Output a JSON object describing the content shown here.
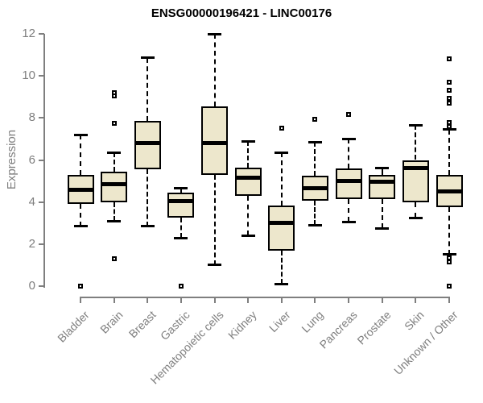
{
  "colors": {
    "box_fill": "#EDE7CC",
    "box_border": "#000000",
    "axis_gray": "#7F7F7F",
    "title_color": "#000000",
    "background": "#FFFFFF"
  },
  "chart_data": {
    "type": "boxplot",
    "title": "ENSG00000196421 - LINC00176",
    "xlabel": "",
    "ylabel": "Expression",
    "ylim": [
      0,
      12
    ],
    "yticks": [
      0,
      2,
      4,
      6,
      8,
      10,
      12
    ],
    "grid": false,
    "legend": "none",
    "categories": [
      "Bladder",
      "Brain",
      "Breast",
      "Gastric",
      "Hematopoietic cells",
      "Kidney",
      "Liver",
      "Lung",
      "Pancreas",
      "Prostate",
      "Skin",
      "Unknown / Other"
    ],
    "series": [
      {
        "name": "Bladder",
        "whisker_low": 2.85,
        "q1": 3.9,
        "median": 4.6,
        "q3": 5.3,
        "whisker_high": 7.2,
        "outliers": [
          0
        ]
      },
      {
        "name": "Brain",
        "whisker_low": 3.1,
        "q1": 4.0,
        "median": 4.85,
        "q3": 5.45,
        "whisker_high": 6.35,
        "outliers": [
          1.3,
          7.75,
          9.05,
          9.2
        ]
      },
      {
        "name": "Breast",
        "whisker_low": 2.85,
        "q1": 5.55,
        "median": 6.8,
        "q3": 7.85,
        "whisker_high": 10.85,
        "outliers": []
      },
      {
        "name": "Gastric",
        "whisker_low": 2.3,
        "q1": 3.25,
        "median": 4.05,
        "q3": 4.45,
        "whisker_high": 4.65,
        "outliers": [
          0
        ]
      },
      {
        "name": "Hematopoietic cells",
        "whisker_low": 1.0,
        "q1": 5.3,
        "median": 6.8,
        "q3": 8.55,
        "whisker_high": 12.0,
        "outliers": []
      },
      {
        "name": "Kidney",
        "whisker_low": 2.4,
        "q1": 4.3,
        "median": 5.15,
        "q3": 5.65,
        "whisker_high": 6.9,
        "outliers": []
      },
      {
        "name": "Liver",
        "whisker_low": 0.1,
        "q1": 1.7,
        "median": 3.0,
        "q3": 3.85,
        "whisker_high": 6.35,
        "outliers": [
          7.5
        ]
      },
      {
        "name": "Lung",
        "whisker_low": 2.9,
        "q1": 4.05,
        "median": 4.65,
        "q3": 5.25,
        "whisker_high": 6.85,
        "outliers": [
          7.95
        ]
      },
      {
        "name": "Pancreas",
        "whisker_low": 3.05,
        "q1": 4.15,
        "median": 5.0,
        "q3": 5.6,
        "whisker_high": 7.0,
        "outliers": [
          8.15
        ]
      },
      {
        "name": "Prostate",
        "whisker_low": 2.75,
        "q1": 4.15,
        "median": 4.95,
        "q3": 5.3,
        "whisker_high": 5.6,
        "outliers": []
      },
      {
        "name": "Skin",
        "whisker_low": 3.25,
        "q1": 4.0,
        "median": 5.6,
        "q3": 6.0,
        "whisker_high": 7.65,
        "outliers": []
      },
      {
        "name": "Unknown / Other",
        "whisker_low": 1.5,
        "q1": 3.75,
        "median": 4.5,
        "q3": 5.3,
        "whisker_high": 7.45,
        "outliers": [
          10.8,
          9.7,
          9.3,
          8.95,
          8.7,
          7.8,
          7.6,
          1.35,
          1.15,
          0
        ]
      }
    ]
  }
}
